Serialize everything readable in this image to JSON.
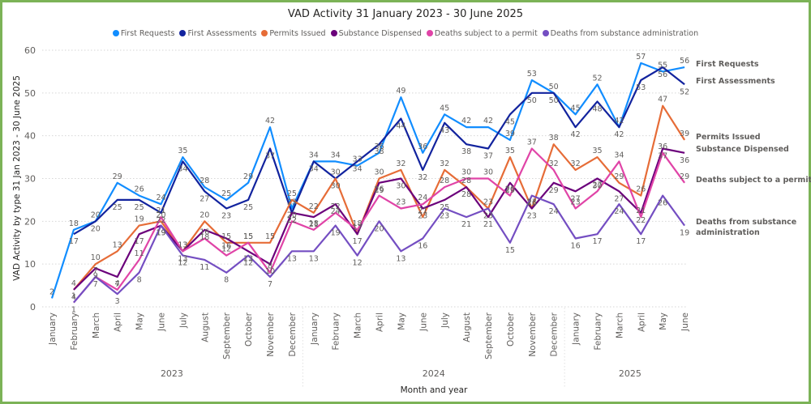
{
  "chart_data": {
    "type": "line",
    "title": "VAD Activity 31 January 2023 - 30 June 2025",
    "xlabel": "Month and year",
    "ylabel": "VAD Activity by type 31 Jan 2023 - 30 June 2025",
    "ylim": [
      0,
      60
    ],
    "yticks": [
      0,
      10,
      20,
      30,
      40,
      50,
      60
    ],
    "grid": true,
    "legend_position": "top-center",
    "years": [
      {
        "label": "2023",
        "months": 12
      },
      {
        "label": "2024",
        "months": 12
      },
      {
        "label": "2025",
        "months": 6
      }
    ],
    "categories": [
      "January",
      "February",
      "March",
      "April",
      "May",
      "June",
      "July",
      "August",
      "September",
      "October",
      "November",
      "December",
      "January",
      "February",
      "March",
      "April",
      "May",
      "June",
      "July",
      "August",
      "September",
      "October",
      "November",
      "December",
      "January",
      "February",
      "March",
      "April",
      "May",
      "June"
    ],
    "series": [
      {
        "name": "First Requests",
        "color": "#118dff",
        "end_label": [
          "First Requests"
        ],
        "values": [
          2,
          18,
          20,
          29,
          26,
          24,
          35,
          28,
          25,
          29,
          42,
          23,
          34,
          34,
          33,
          36,
          49,
          36,
          45,
          42,
          42,
          39,
          53,
          50,
          45,
          52,
          42,
          57,
          55,
          56
        ]
      },
      {
        "name": "First Assessments",
        "color": "#12239e",
        "end_label": [
          "First Assessments"
        ],
        "values": [
          null,
          17,
          20,
          25,
          25,
          22,
          34,
          27,
          23,
          25,
          37,
          22,
          34,
          30,
          34,
          38,
          44,
          32,
          43,
          38,
          37,
          45,
          50,
          50,
          42,
          48,
          42,
          53,
          56,
          52
        ]
      },
      {
        "name": "Permits Issued",
        "color": "#e66c37",
        "end_label": [
          "Permits Issued"
        ],
        "values": [
          null,
          4,
          10,
          13,
          19,
          20,
          13,
          20,
          15,
          15,
          15,
          25,
          22,
          30,
          17,
          30,
          32,
          21,
          32,
          28,
          23,
          35,
          23,
          38,
          32,
          35,
          29,
          26,
          47,
          39
        ]
      },
      {
        "name": "Substance Dispensed",
        "color": "#6b007b",
        "end_label": [
          "Substance Dispensed"
        ],
        "values": [
          null,
          4,
          9,
          7,
          17,
          19,
          13,
          18,
          16,
          13,
          10,
          22,
          21,
          24,
          17,
          29,
          30,
          23,
          25,
          28,
          21,
          29,
          23,
          29,
          27,
          30,
          27,
          22,
          37,
          36
        ]
      },
      {
        "name": "Deaths subject to a permit",
        "color": "#e044a7",
        "end_label": [
          "Deaths subject to a permit"
        ],
        "values": [
          null,
          1,
          7,
          4,
          11,
          21,
          13,
          16,
          12,
          15,
          8,
          20,
          18,
          22,
          18,
          26,
          23,
          24,
          28,
          30,
          30,
          26,
          37,
          32,
          23,
          27,
          34,
          21,
          36,
          29
        ]
      },
      {
        "name": "Deaths from substance administration",
        "color": "#744ec2",
        "end_label": [
          "Deaths from substance",
          "administration"
        ],
        "values": [
          null,
          1,
          7,
          3,
          8,
          19,
          12,
          11,
          8,
          12,
          7,
          13,
          13,
          19,
          12,
          20,
          13,
          16,
          23,
          21,
          23,
          15,
          26,
          24,
          16,
          17,
          24,
          17,
          26,
          19
        ]
      }
    ]
  }
}
